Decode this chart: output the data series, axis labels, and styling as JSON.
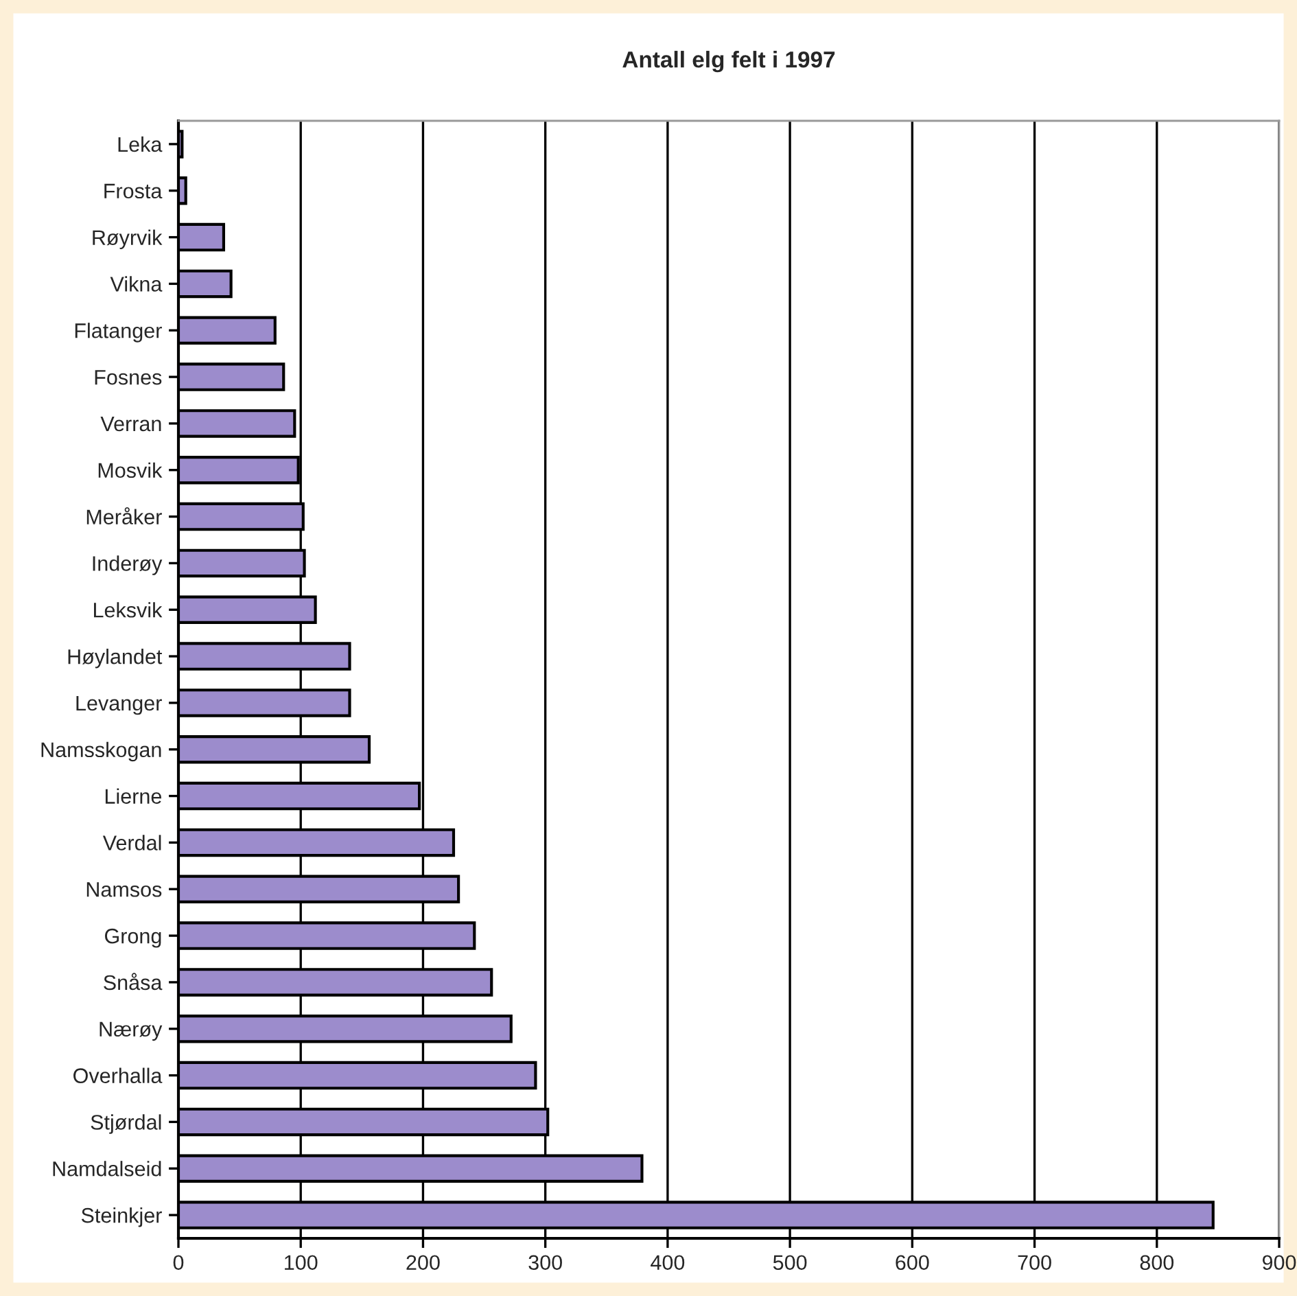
{
  "chart_data": {
    "type": "bar",
    "orientation": "horizontal",
    "title": "Antall elg felt i 1997",
    "categories": [
      "Leka",
      "Frosta",
      "Røyrvik",
      "Vikna",
      "Flatanger",
      "Fosnes",
      "Verran",
      "Mosvik",
      "Meråker",
      "Inderøy",
      "Leksvik",
      "Høylandet",
      "Levanger",
      "Namsskogan",
      "Lierne",
      "Verdal",
      "Namsos",
      "Grong",
      "Snåsa",
      "Nærøy",
      "Overhalla",
      "Stjørdal",
      "Namdalseid",
      "Steinkjer"
    ],
    "values": [
      3,
      6,
      37,
      43,
      79,
      86,
      95,
      98,
      102,
      103,
      112,
      140,
      140,
      156,
      197,
      225,
      229,
      242,
      256,
      272,
      292,
      302,
      379,
      846
    ],
    "color": "#9c8ccc",
    "xlim": [
      0,
      900
    ],
    "xticks": [
      0,
      100,
      200,
      300,
      400,
      500,
      600,
      700,
      800,
      900
    ],
    "grid": "x",
    "legend": false
  }
}
